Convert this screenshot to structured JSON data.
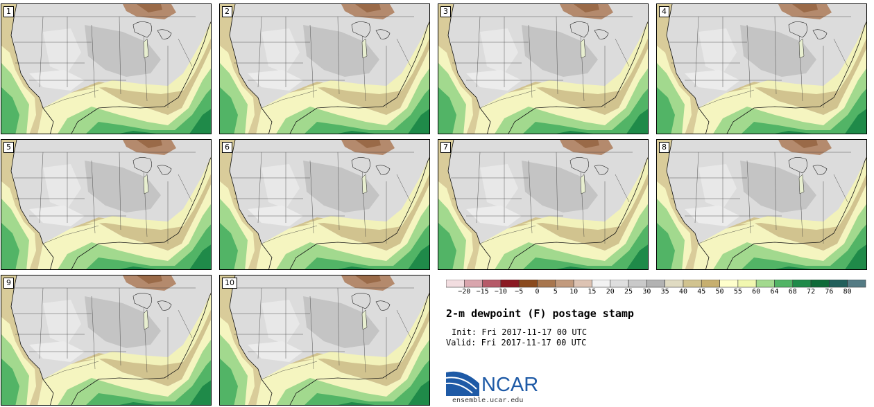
{
  "panels": [
    {
      "label": "1"
    },
    {
      "label": "2"
    },
    {
      "label": "3"
    },
    {
      "label": "4"
    },
    {
      "label": "5"
    },
    {
      "label": "6"
    },
    {
      "label": "7"
    },
    {
      "label": "8"
    },
    {
      "label": "9"
    },
    {
      "label": "10"
    }
  ],
  "colorbar": {
    "labels": [
      "−20",
      "−15",
      "−10",
      "−5",
      "0",
      "5",
      "10",
      "15",
      "20",
      "25",
      "30",
      "35",
      "40",
      "45",
      "50",
      "55",
      "60",
      "64",
      "68",
      "72",
      "76",
      "80"
    ],
    "colors": [
      "#f2dde0",
      "#d9a5ad",
      "#b65a68",
      "#8b1a23",
      "#8a4a1e",
      "#a8764e",
      "#c29a7d",
      "#ddc3b3",
      "#f2f2f2",
      "#dedede",
      "#c9c9c9",
      "#b2b2b2",
      "#e0dbc2",
      "#d1c38f",
      "#c7af6f",
      "#ffffcc",
      "#f1f7b0",
      "#a2d98e",
      "#52b466",
      "#1f8a49",
      "#0f6a38",
      "#215f5b",
      "#547b84"
    ]
  },
  "title": "2-m dewpoint (F) postage stamp",
  "init": "Init: Fri 2017-11-17 00 UTC",
  "valid": "Valid: Fri 2017-11-17 00 UTC",
  "logo": {
    "text": "NCAR",
    "icon": "ncar-logo-icon"
  },
  "site": "ensemble.ucar.edu"
}
